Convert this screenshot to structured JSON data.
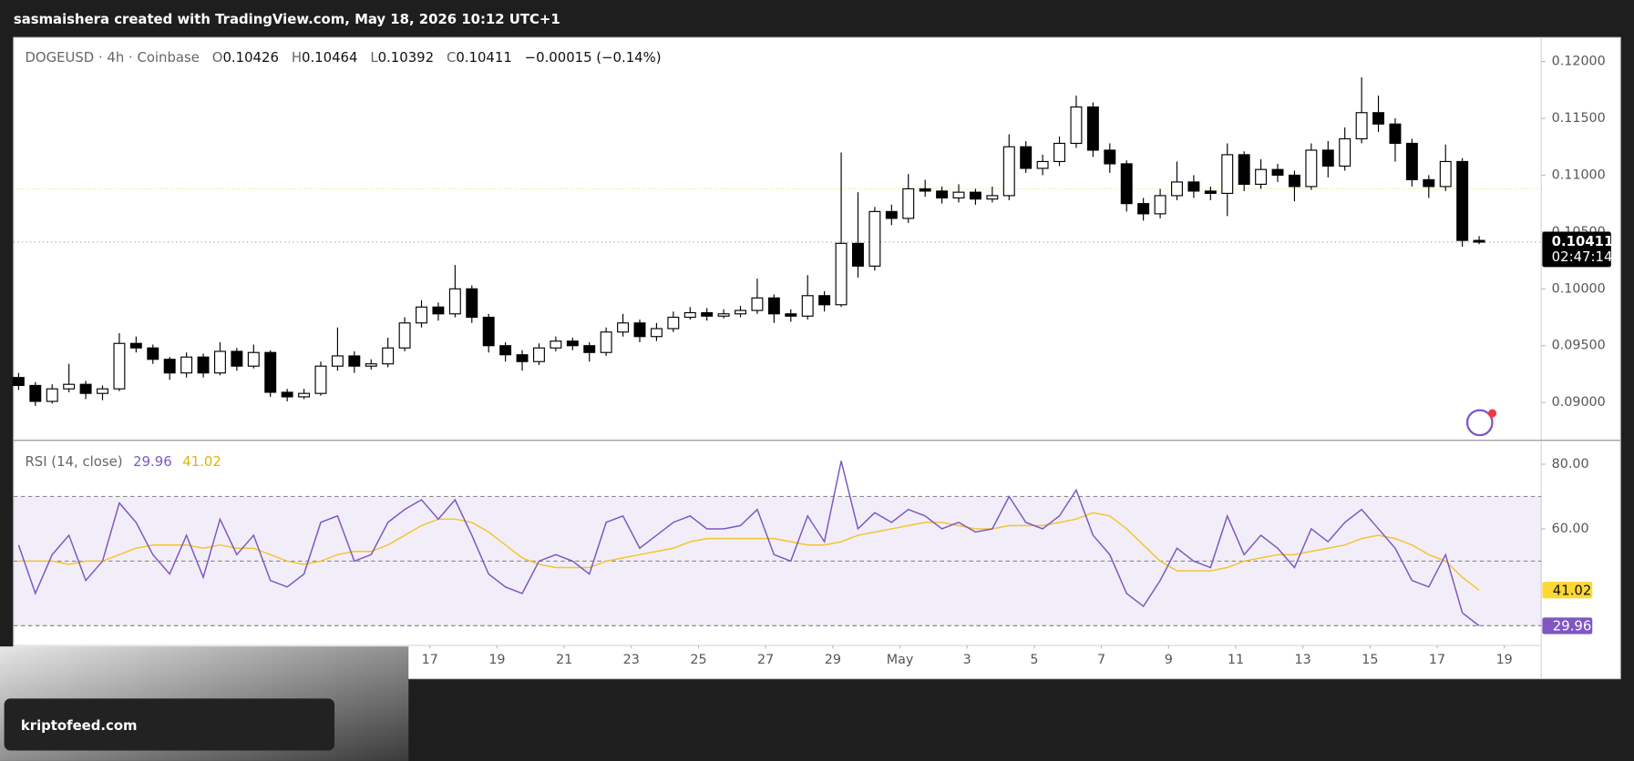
{
  "header": "sasmaishera created with TradingView.com, May 18, 2026 10:12 UTC+1",
  "watermark": "kriptofeed.com",
  "chart_data": {
    "type": "candlestick",
    "symbol": "DOGEUSD · 4h · Coinbase",
    "legend_labels": [
      "O",
      "H",
      "L",
      "C"
    ],
    "change": "−0.00015 (−0.14%)",
    "countdown": "02:47:14",
    "up_color": "#ffffff",
    "down_color": "#000000",
    "x": [
      4.75,
      5.25,
      5.75,
      6.25,
      6.75,
      7.25,
      7.75,
      8.25,
      8.75,
      9.25,
      9.75,
      10.25,
      10.75,
      11.25,
      11.75,
      12.25,
      12.75,
      13.25,
      13.75,
      14.25,
      14.75,
      15.25,
      15.75,
      16.25,
      16.75,
      17.25,
      17.75,
      18.25,
      18.75,
      19.25,
      19.75,
      20.25,
      20.75,
      21.25,
      21.75,
      22.25,
      22.75,
      23.25,
      23.75,
      24.25,
      24.75,
      25.25,
      25.75,
      26.25,
      26.75,
      27.25,
      27.75,
      28.25,
      28.75,
      29.25,
      29.75,
      30.25,
      30.75,
      31.25,
      31.75,
      32.25,
      32.75,
      33.25,
      33.75,
      34.25,
      34.75,
      35.25,
      35.75,
      36.25,
      36.75,
      37.25,
      37.75,
      38.25,
      38.75,
      39.25,
      39.75,
      40.25,
      40.75,
      41.25,
      41.75,
      42.25,
      42.75,
      43.25,
      43.75,
      44.25,
      44.75,
      45.25,
      45.75,
      46.25,
      46.75,
      47.25,
      47.75,
      48.25
    ],
    "open": [
      0.0922,
      0.0915,
      0.0901,
      0.0912,
      0.0916,
      0.0908,
      0.0912,
      0.0952,
      0.0948,
      0.0938,
      0.0926,
      0.094,
      0.0926,
      0.0945,
      0.0932,
      0.0944,
      0.0909,
      0.0905,
      0.0908,
      0.0932,
      0.0941,
      0.0932,
      0.0934,
      0.0948,
      0.097,
      0.0984,
      0.0978,
      0.1,
      0.0975,
      0.095,
      0.0942,
      0.0936,
      0.0948,
      0.0954,
      0.095,
      0.0944,
      0.0962,
      0.097,
      0.0958,
      0.0965,
      0.0975,
      0.0979,
      0.0976,
      0.0978,
      0.0981,
      0.0992,
      0.0978,
      0.0976,
      0.0994,
      0.0986,
      0.104,
      0.102,
      0.1068,
      0.1062,
      0.1088,
      0.1086,
      0.108,
      0.1085,
      0.1079,
      0.1082,
      0.1125,
      0.1106,
      0.1112,
      0.1128,
      0.116,
      0.1122,
      0.111,
      0.1075,
      0.1066,
      0.1082,
      0.1094,
      0.1086,
      0.1084,
      0.1118,
      0.1092,
      0.1105,
      0.11,
      0.109,
      0.1122,
      0.1108,
      0.1132,
      0.1155,
      0.1145,
      0.1128,
      0.1096,
      0.109,
      0.1112,
      0.10426
    ],
    "high": [
      0.0926,
      0.0918,
      0.0916,
      0.0934,
      0.0919,
      0.0915,
      0.0961,
      0.0958,
      0.0951,
      0.094,
      0.0944,
      0.0943,
      0.0953,
      0.0948,
      0.0951,
      0.0946,
      0.0912,
      0.0912,
      0.0936,
      0.0966,
      0.0945,
      0.0938,
      0.0957,
      0.0975,
      0.099,
      0.0988,
      0.1021,
      0.1003,
      0.0978,
      0.0953,
      0.0946,
      0.0952,
      0.0958,
      0.0957,
      0.0953,
      0.0966,
      0.0978,
      0.0973,
      0.097,
      0.098,
      0.0984,
      0.0983,
      0.0982,
      0.0985,
      0.1009,
      0.0995,
      0.0982,
      0.1012,
      0.0998,
      0.112,
      0.1085,
      0.1072,
      0.1074,
      0.1101,
      0.1096,
      0.109,
      0.1092,
      0.1088,
      0.109,
      0.1136,
      0.113,
      0.1118,
      0.1134,
      0.117,
      0.1164,
      0.1128,
      0.1113,
      0.108,
      0.1088,
      0.1112,
      0.11,
      0.109,
      0.1128,
      0.1121,
      0.1114,
      0.111,
      0.1104,
      0.1128,
      0.113,
      0.1142,
      0.1186,
      0.117,
      0.115,
      0.1132,
      0.11,
      0.1127,
      0.1115,
      0.10464
    ],
    "low": [
      0.0911,
      0.0897,
      0.0899,
      0.0909,
      0.0903,
      0.0902,
      0.091,
      0.0944,
      0.0934,
      0.092,
      0.0922,
      0.0922,
      0.0924,
      0.0928,
      0.093,
      0.0905,
      0.0901,
      0.0903,
      0.0906,
      0.0928,
      0.0926,
      0.0929,
      0.0931,
      0.0945,
      0.0966,
      0.0972,
      0.0975,
      0.097,
      0.0944,
      0.0936,
      0.0928,
      0.0933,
      0.0945,
      0.0946,
      0.0936,
      0.0941,
      0.0958,
      0.0953,
      0.0954,
      0.0962,
      0.0973,
      0.0972,
      0.0974,
      0.0975,
      0.0978,
      0.097,
      0.0971,
      0.0973,
      0.098,
      0.0984,
      0.101,
      0.1016,
      0.1056,
      0.1058,
      0.1081,
      0.1075,
      0.1076,
      0.1074,
      0.1076,
      0.1078,
      0.1102,
      0.11,
      0.1108,
      0.1124,
      0.1116,
      0.1102,
      0.1068,
      0.106,
      0.1062,
      0.1078,
      0.108,
      0.1078,
      0.1064,
      0.1086,
      0.1088,
      0.1094,
      0.1077,
      0.1087,
      0.1098,
      0.1104,
      0.1128,
      0.1138,
      0.1112,
      0.109,
      0.108,
      0.1086,
      0.1037,
      0.10392
    ],
    "close": [
      0.0915,
      0.0901,
      0.0912,
      0.0916,
      0.0908,
      0.0912,
      0.0952,
      0.0948,
      0.0938,
      0.0926,
      0.094,
      0.0926,
      0.0945,
      0.0932,
      0.0944,
      0.0909,
      0.0905,
      0.0908,
      0.0932,
      0.0941,
      0.0932,
      0.0934,
      0.0948,
      0.097,
      0.0984,
      0.0978,
      0.1,
      0.0975,
      0.095,
      0.0942,
      0.0936,
      0.0948,
      0.0954,
      0.095,
      0.0944,
      0.0962,
      0.097,
      0.0958,
      0.0965,
      0.0975,
      0.0979,
      0.0976,
      0.0978,
      0.0981,
      0.0992,
      0.0978,
      0.0976,
      0.0994,
      0.0986,
      0.104,
      0.102,
      0.1068,
      0.1062,
      0.1088,
      0.1086,
      0.108,
      0.1085,
      0.1079,
      0.1082,
      0.1125,
      0.1106,
      0.1112,
      0.1128,
      0.116,
      0.1122,
      0.111,
      0.1075,
      0.1066,
      0.1082,
      0.1094,
      0.1086,
      0.1084,
      0.1118,
      0.1092,
      0.1105,
      0.11,
      0.109,
      0.1122,
      0.1108,
      0.1132,
      0.1155,
      0.1145,
      0.1128,
      0.1096,
      0.109,
      0.1112,
      0.10426,
      0.10411
    ],
    "xlim": [
      4.6,
      50.1
    ],
    "xticks": [
      {
        "value": 17,
        "label": "17"
      },
      {
        "value": 19,
        "label": "19"
      },
      {
        "value": 21,
        "label": "21"
      },
      {
        "value": 23,
        "label": "23"
      },
      {
        "value": 25,
        "label": "25"
      },
      {
        "value": 27,
        "label": "27"
      },
      {
        "value": 29,
        "label": "29"
      },
      {
        "value": 31,
        "label": "May"
      },
      {
        "value": 33,
        "label": "3"
      },
      {
        "value": 35,
        "label": "5"
      },
      {
        "value": 37,
        "label": "7"
      },
      {
        "value": 39,
        "label": "9"
      },
      {
        "value": 41,
        "label": "11"
      },
      {
        "value": 43,
        "label": "13"
      },
      {
        "value": 45,
        "label": "15"
      },
      {
        "value": 47,
        "label": "17"
      },
      {
        "value": 49,
        "label": "19"
      }
    ],
    "ylim": [
      0.08667,
      0.12211
    ],
    "yticks": [
      {
        "value": 0.09,
        "label": "0.09000"
      },
      {
        "value": 0.095,
        "label": "0.09500"
      },
      {
        "value": 0.1,
        "label": "0.10000"
      },
      {
        "value": 0.105,
        "label": "0.10500"
      },
      {
        "value": 0.11,
        "label": "0.11000"
      },
      {
        "value": 0.115,
        "label": "0.11500"
      },
      {
        "value": 0.12,
        "label": "0.12000"
      }
    ],
    "ref_line": {
      "value": 0.10881,
      "color": "#f5e663"
    },
    "indicator": {
      "title": "RSI (14, close)",
      "band_color": "#7e57c2",
      "bands": [
        30,
        50,
        70
      ],
      "ylim": [
        23.9,
        87.4
      ],
      "yticks": [
        {
          "value": 60,
          "label": "60.00"
        },
        {
          "value": 80,
          "label": "80.00"
        }
      ],
      "rsi": {
        "color": "#7e57c2",
        "values": [
          55,
          40,
          52,
          58,
          44,
          50,
          68,
          62,
          52,
          46,
          58,
          45,
          63,
          52,
          58,
          44,
          42,
          46,
          62,
          64,
          50,
          52,
          62,
          66,
          69,
          63,
          69,
          58,
          46,
          42,
          40,
          50,
          52,
          50,
          46,
          62,
          64,
          54,
          58,
          62,
          64,
          60,
          60,
          61,
          66,
          52,
          50,
          64,
          56,
          81,
          60,
          65,
          62,
          66,
          64,
          60,
          62,
          59,
          60,
          70,
          62,
          60,
          64,
          72,
          58,
          52,
          40,
          36,
          44,
          54,
          50,
          48,
          64,
          52,
          58,
          54,
          48,
          60,
          56,
          62,
          66,
          60,
          54,
          44,
          42,
          52,
          34,
          29.96
        ]
      },
      "rsi_ma": {
        "color": "#f4c430",
        "values": [
          50,
          50,
          50,
          49,
          50,
          50,
          52,
          54,
          55,
          55,
          55,
          54,
          55,
          54,
          54,
          52,
          50,
          49,
          50,
          52,
          53,
          53,
          55,
          58,
          61,
          63,
          63,
          62,
          59,
          55,
          51,
          49,
          48,
          48,
          48,
          50,
          51,
          52,
          53,
          54,
          56,
          57,
          57,
          57,
          57,
          57,
          56,
          55,
          55,
          56,
          58,
          59,
          60,
          61,
          62,
          62,
          61,
          60,
          60,
          61,
          61,
          61,
          62,
          63,
          65,
          64,
          60,
          55,
          50,
          47,
          47,
          47,
          48,
          50,
          51,
          52,
          52,
          53,
          54,
          55,
          57,
          58,
          57,
          55,
          52,
          50,
          45,
          41.02
        ]
      }
    }
  }
}
